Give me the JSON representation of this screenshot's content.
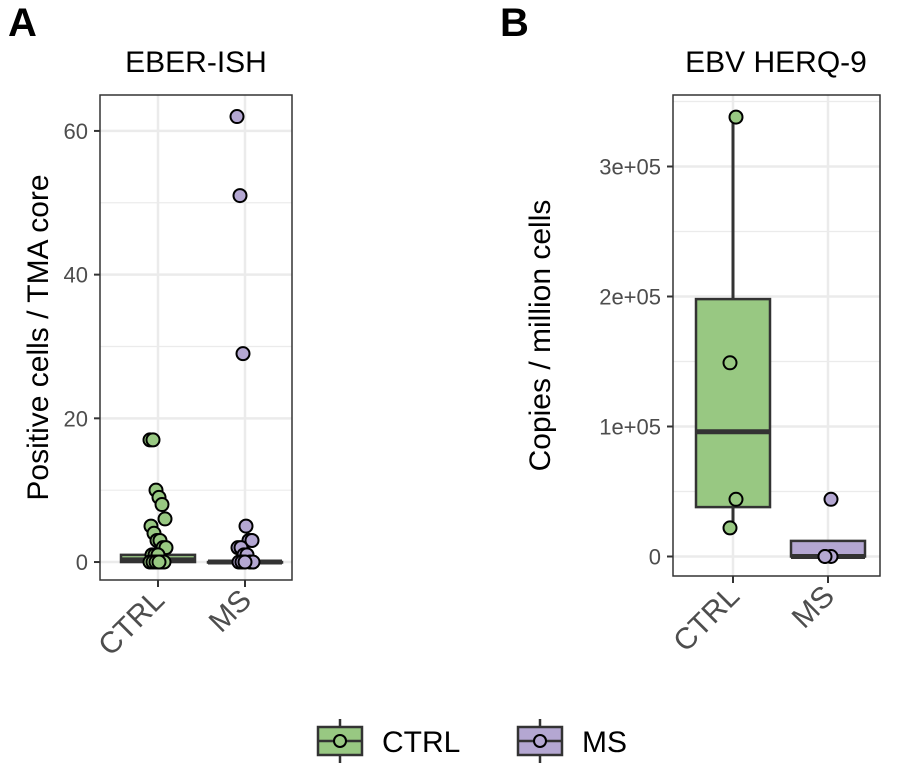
{
  "chart_data": [
    {
      "type": "box",
      "panel_label": "A",
      "title": "EBER-ISH",
      "ylabel": "Positive cells / TMA core",
      "xlabel": "",
      "categories": [
        "CTRL",
        "MS"
      ],
      "ylim": [
        -2.5,
        65
      ],
      "yticks": [
        0,
        20,
        40,
        60
      ],
      "ytick_labels": [
        "0",
        "20",
        "40",
        "60"
      ],
      "grid": true,
      "boxes": [
        {
          "group": "CTRL",
          "q1": 0,
          "median": 0.3,
          "q3": 1,
          "whisker_low": 0,
          "whisker_high": 2
        },
        {
          "group": "MS",
          "q1": 0,
          "median": 0,
          "q3": 0,
          "whisker_low": 0,
          "whisker_high": 0
        }
      ],
      "points": {
        "CTRL": [
          17,
          17,
          10,
          9,
          8,
          6,
          5,
          4,
          3,
          3,
          2,
          2,
          1,
          1,
          1,
          0,
          0,
          0,
          0,
          0,
          0
        ],
        "MS": [
          62,
          51,
          29,
          5,
          3,
          3,
          2,
          2,
          1,
          1,
          0,
          0,
          0,
          0,
          0
        ]
      }
    },
    {
      "type": "box",
      "panel_label": "B",
      "title": "EBV HERQ-9",
      "ylabel": "Copies / million cells",
      "xlabel": "",
      "categories": [
        "CTRL",
        "MS"
      ],
      "ylim": [
        -15000,
        355000
      ],
      "yticks": [
        0,
        100000,
        200000,
        300000
      ],
      "ytick_labels": [
        "0",
        "1e+05",
        "2e+05",
        "3e+05"
      ],
      "grid": true,
      "boxes": [
        {
          "group": "CTRL",
          "q1": 38000,
          "median": 96000,
          "q3": 198000,
          "whisker_low": 22000,
          "whisker_high": 338000
        },
        {
          "group": "MS",
          "q1": 0,
          "median": 0,
          "q3": 12000,
          "whisker_low": 0,
          "whisker_high": 12000
        }
      ],
      "points": {
        "CTRL": [
          338000,
          149000,
          44000,
          22000
        ],
        "MS": [
          44000,
          0,
          0,
          0
        ]
      }
    }
  ],
  "legend": {
    "position": "bottom",
    "items": [
      {
        "label": "CTRL",
        "color": "#98c882"
      },
      {
        "label": "MS",
        "color": "#b4a7d2"
      }
    ]
  },
  "colors": {
    "CTRL": "#98c882",
    "MS": "#b4a7d2",
    "box_line": "#333333",
    "grid": "#ebebeb"
  }
}
